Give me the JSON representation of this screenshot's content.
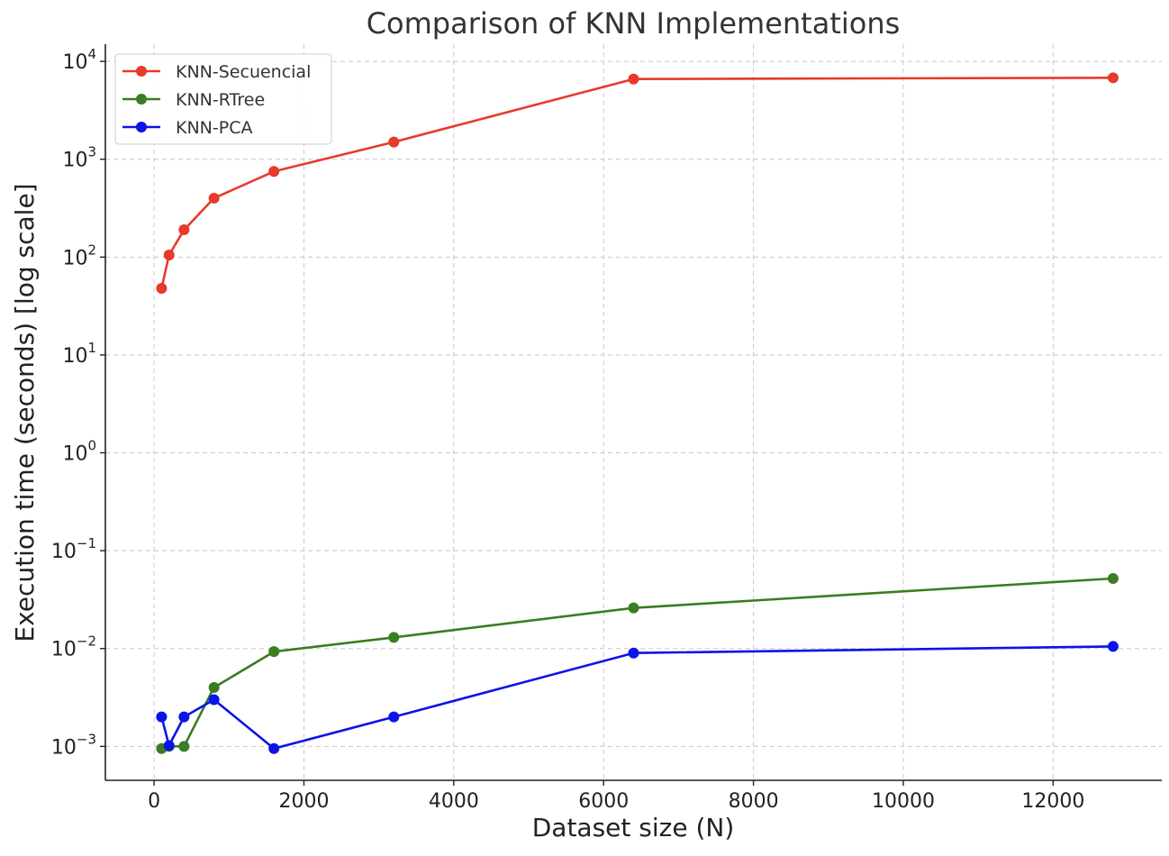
{
  "chart_data": {
    "type": "line",
    "title": "Comparison of KNN Implementations",
    "xlabel": "Dataset size (N)",
    "ylabel": "Execution time (seconds) [log scale]",
    "yscale": "log",
    "xlim": [
      -650,
      13450
    ],
    "ylim": [
      0.00045,
      15000
    ],
    "grid": true,
    "legend_position": "top-left",
    "x_ticks": [
      0,
      2000,
      4000,
      6000,
      8000,
      10000,
      12000
    ],
    "x_tick_labels": [
      "0",
      "2000",
      "4000",
      "6000",
      "8000",
      "10000",
      "12000"
    ],
    "y_ticks": [
      0.001,
      0.01,
      0.1,
      1,
      10,
      100,
      1000,
      10000
    ],
    "y_tick_labels": [
      {
        "base": "10",
        "exp": "−3"
      },
      {
        "base": "10",
        "exp": "−2"
      },
      {
        "base": "10",
        "exp": "−1"
      },
      {
        "base": "10",
        "exp": "0"
      },
      {
        "base": "10",
        "exp": "1"
      },
      {
        "base": "10",
        "exp": "2"
      },
      {
        "base": "10",
        "exp": "3"
      },
      {
        "base": "10",
        "exp": "4"
      }
    ],
    "x": [
      100,
      200,
      400,
      800,
      1600,
      3200,
      6400,
      12800
    ],
    "series": [
      {
        "name": "KNN-Secuencial",
        "color": "#e8392b",
        "values": [
          48,
          105,
          190,
          400,
          750,
          1500,
          6600,
          6800
        ]
      },
      {
        "name": "KNN-RTree",
        "color": "#3a7d22",
        "values": [
          0.00095,
          0.001,
          0.001,
          0.004,
          0.0093,
          0.013,
          0.026,
          0.052
        ]
      },
      {
        "name": "KNN-PCA",
        "color": "#0a14e8",
        "values": [
          0.002,
          0.00102,
          0.002,
          0.003,
          0.00095,
          0.002,
          0.009,
          0.0105
        ]
      }
    ]
  }
}
